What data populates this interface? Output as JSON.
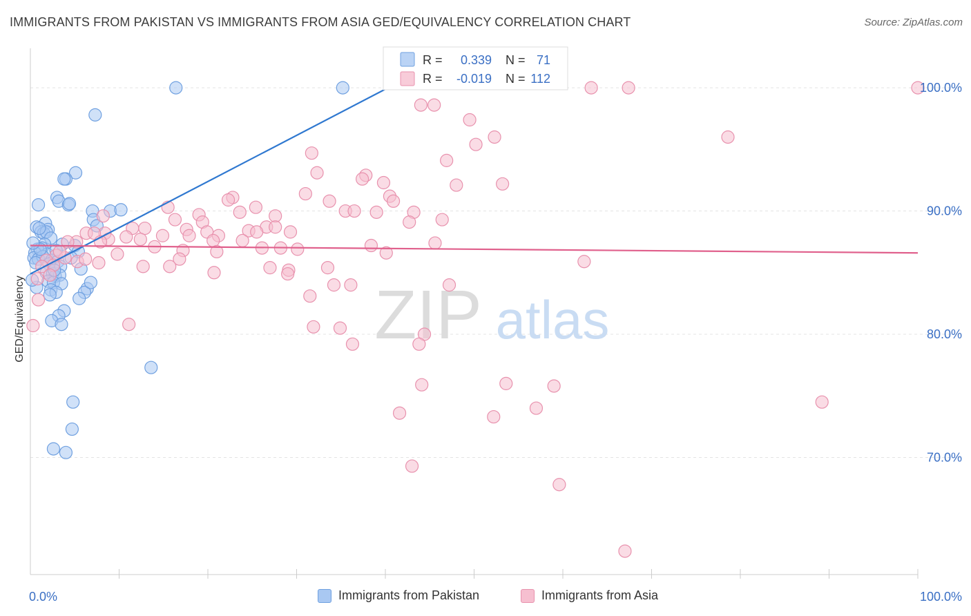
{
  "title": "IMMIGRANTS FROM PAKISTAN VS IMMIGRANTS FROM ASIA GED/EQUIVALENCY CORRELATION CHART",
  "source": "Source: ZipAtlas.com",
  "watermark": {
    "zip": "ZIP",
    "atlas": "atlas"
  },
  "colors": {
    "blue_fill": "#a9c8f2",
    "blue_stroke": "#6fa0e0",
    "blue_line": "#2f78d0",
    "pink_fill": "#f6bfd0",
    "pink_stroke": "#e891ad",
    "pink_line": "#e0608c",
    "value_text": "#3a6fc4",
    "grid": "#e3e3e3"
  },
  "legend_top": {
    "r_label": "R =",
    "n_label": "N =",
    "rows": [
      {
        "r": "0.339",
        "n": "71"
      },
      {
        "r": "-0.019",
        "n": "112"
      }
    ]
  },
  "legend_bottom": [
    "Immigrants from Pakistan",
    "Immigrants from Asia"
  ],
  "chart_data": {
    "type": "scatter",
    "xlabel": "",
    "ylabel": "GED/Equivalency",
    "xlim": [
      0,
      100
    ],
    "ylim": [
      60.5,
      103.2
    ],
    "x_tick_labels": [
      {
        "value": 0,
        "label": "0.0%"
      },
      {
        "value": 100,
        "label": "100.0%"
      }
    ],
    "y_ticks": [
      {
        "value": 100,
        "label": "100.0%"
      },
      {
        "value": 90,
        "label": "90.0%"
      },
      {
        "value": 80,
        "label": "80.0%"
      },
      {
        "value": 70,
        "label": "70.0%"
      }
    ],
    "x_minor_ticks": [
      10,
      20,
      30,
      40,
      50,
      60,
      70,
      80,
      90,
      100
    ],
    "grid": true,
    "legend_position": "top-center",
    "series": [
      {
        "name": "Immigrants from Pakistan",
        "color": "blue",
        "trend": {
          "x": [
            0,
            40.3
          ],
          "y": [
            84.9,
            100.0
          ]
        },
        "points": [
          {
            "x": 16.4,
            "y": 100.0
          },
          {
            "x": 35.2,
            "y": 100.0
          },
          {
            "x": 7.3,
            "y": 97.8
          },
          {
            "x": 5.1,
            "y": 93.1
          },
          {
            "x": 4.0,
            "y": 92.6
          },
          {
            "x": 3.8,
            "y": 92.6
          },
          {
            "x": 3.0,
            "y": 91.1
          },
          {
            "x": 3.2,
            "y": 90.8
          },
          {
            "x": 4.3,
            "y": 90.5
          },
          {
            "x": 4.4,
            "y": 90.6
          },
          {
            "x": 0.9,
            "y": 90.5
          },
          {
            "x": 7.0,
            "y": 90.0
          },
          {
            "x": 9.0,
            "y": 90.0
          },
          {
            "x": 10.2,
            "y": 90.1
          },
          {
            "x": 7.1,
            "y": 89.3
          },
          {
            "x": 1.7,
            "y": 89.0
          },
          {
            "x": 7.5,
            "y": 88.8
          },
          {
            "x": 0.7,
            "y": 88.7
          },
          {
            "x": 2.0,
            "y": 88.5
          },
          {
            "x": 1.2,
            "y": 88.3
          },
          {
            "x": 1.5,
            "y": 88.2
          },
          {
            "x": 1.8,
            "y": 88.3
          },
          {
            "x": 2.3,
            "y": 87.8
          },
          {
            "x": 1.6,
            "y": 87.3
          },
          {
            "x": 3.6,
            "y": 87.3
          },
          {
            "x": 1.3,
            "y": 87.0
          },
          {
            "x": 0.8,
            "y": 86.9
          },
          {
            "x": 5.0,
            "y": 87.2
          },
          {
            "x": 0.5,
            "y": 86.6
          },
          {
            "x": 1.9,
            "y": 86.5
          },
          {
            "x": 2.9,
            "y": 86.8
          },
          {
            "x": 5.4,
            "y": 86.7
          },
          {
            "x": 0.4,
            "y": 86.2
          },
          {
            "x": 0.9,
            "y": 86.1
          },
          {
            "x": 1.4,
            "y": 86.3
          },
          {
            "x": 2.4,
            "y": 86.0
          },
          {
            "x": 3.1,
            "y": 85.9
          },
          {
            "x": 0.6,
            "y": 85.8
          },
          {
            "x": 2.1,
            "y": 85.7
          },
          {
            "x": 3.4,
            "y": 85.5
          },
          {
            "x": 5.7,
            "y": 85.3
          },
          {
            "x": 1.8,
            "y": 85.0
          },
          {
            "x": 2.5,
            "y": 84.9
          },
          {
            "x": 2.8,
            "y": 84.7
          },
          {
            "x": 3.3,
            "y": 84.8
          },
          {
            "x": 2.0,
            "y": 84.3
          },
          {
            "x": 2.6,
            "y": 84.2
          },
          {
            "x": 3.5,
            "y": 84.1
          },
          {
            "x": 0.7,
            "y": 83.8
          },
          {
            "x": 2.3,
            "y": 83.6
          },
          {
            "x": 6.4,
            "y": 83.7
          },
          {
            "x": 2.9,
            "y": 83.4
          },
          {
            "x": 6.1,
            "y": 83.4
          },
          {
            "x": 2.2,
            "y": 83.2
          },
          {
            "x": 5.5,
            "y": 82.9
          },
          {
            "x": 3.8,
            "y": 81.9
          },
          {
            "x": 3.2,
            "y": 81.5
          },
          {
            "x": 2.4,
            "y": 81.1
          },
          {
            "x": 3.5,
            "y": 80.8
          },
          {
            "x": 13.6,
            "y": 77.3
          },
          {
            "x": 4.8,
            "y": 74.5
          },
          {
            "x": 4.7,
            "y": 72.3
          },
          {
            "x": 2.6,
            "y": 70.7
          },
          {
            "x": 4.0,
            "y": 70.4
          },
          {
            "x": 1.1,
            "y": 86.9
          },
          {
            "x": 0.3,
            "y": 87.4
          },
          {
            "x": 1.0,
            "y": 88.6
          },
          {
            "x": 2.7,
            "y": 85.2
          },
          {
            "x": 4.6,
            "y": 86.2
          },
          {
            "x": 6.8,
            "y": 84.2
          },
          {
            "x": 0.2,
            "y": 84.4
          }
        ]
      },
      {
        "name": "Immigrants from Asia",
        "color": "pink",
        "trend": {
          "x": [
            0,
            100
          ],
          "y": [
            87.2,
            86.6
          ]
        },
        "points": [
          {
            "x": 63.2,
            "y": 100.0
          },
          {
            "x": 67.4,
            "y": 100.0
          },
          {
            "x": 100.0,
            "y": 100.0
          },
          {
            "x": 45.5,
            "y": 98.6
          },
          {
            "x": 44.0,
            "y": 98.6
          },
          {
            "x": 49.5,
            "y": 97.4
          },
          {
            "x": 78.6,
            "y": 96.0
          },
          {
            "x": 52.3,
            "y": 96.0
          },
          {
            "x": 50.2,
            "y": 95.4
          },
          {
            "x": 31.7,
            "y": 94.7
          },
          {
            "x": 46.9,
            "y": 94.1
          },
          {
            "x": 32.3,
            "y": 93.1
          },
          {
            "x": 37.8,
            "y": 92.9
          },
          {
            "x": 37.4,
            "y": 92.6
          },
          {
            "x": 39.8,
            "y": 92.3
          },
          {
            "x": 48.0,
            "y": 92.1
          },
          {
            "x": 53.2,
            "y": 92.2
          },
          {
            "x": 31.0,
            "y": 91.4
          },
          {
            "x": 22.8,
            "y": 91.1
          },
          {
            "x": 22.3,
            "y": 90.9
          },
          {
            "x": 40.5,
            "y": 91.2
          },
          {
            "x": 40.9,
            "y": 90.8
          },
          {
            "x": 33.7,
            "y": 90.8
          },
          {
            "x": 15.5,
            "y": 90.3
          },
          {
            "x": 25.4,
            "y": 90.3
          },
          {
            "x": 35.5,
            "y": 90.0
          },
          {
            "x": 36.5,
            "y": 90.0
          },
          {
            "x": 39.0,
            "y": 89.9
          },
          {
            "x": 43.2,
            "y": 89.9
          },
          {
            "x": 23.6,
            "y": 89.9
          },
          {
            "x": 19.0,
            "y": 89.7
          },
          {
            "x": 27.6,
            "y": 89.6
          },
          {
            "x": 8.2,
            "y": 89.6
          },
          {
            "x": 16.3,
            "y": 89.3
          },
          {
            "x": 46.4,
            "y": 89.3
          },
          {
            "x": 42.7,
            "y": 89.1
          },
          {
            "x": 19.4,
            "y": 89.1
          },
          {
            "x": 26.6,
            "y": 88.7
          },
          {
            "x": 27.6,
            "y": 88.7
          },
          {
            "x": 11.5,
            "y": 88.6
          },
          {
            "x": 12.9,
            "y": 88.6
          },
          {
            "x": 17.6,
            "y": 88.5
          },
          {
            "x": 24.6,
            "y": 88.4
          },
          {
            "x": 25.5,
            "y": 88.3
          },
          {
            "x": 19.9,
            "y": 88.3
          },
          {
            "x": 29.3,
            "y": 88.3
          },
          {
            "x": 8.4,
            "y": 88.2
          },
          {
            "x": 6.3,
            "y": 88.2
          },
          {
            "x": 7.2,
            "y": 88.2
          },
          {
            "x": 14.9,
            "y": 88.0
          },
          {
            "x": 17.9,
            "y": 88.0
          },
          {
            "x": 21.2,
            "y": 88.0
          },
          {
            "x": 10.8,
            "y": 87.9
          },
          {
            "x": 12.4,
            "y": 87.7
          },
          {
            "x": 8.8,
            "y": 87.7
          },
          {
            "x": 20.6,
            "y": 87.6
          },
          {
            "x": 23.9,
            "y": 87.6
          },
          {
            "x": 5.2,
            "y": 87.5
          },
          {
            "x": 7.9,
            "y": 87.5
          },
          {
            "x": 45.6,
            "y": 87.4
          },
          {
            "x": 38.4,
            "y": 87.2
          },
          {
            "x": 14.0,
            "y": 87.1
          },
          {
            "x": 26.1,
            "y": 87.0
          },
          {
            "x": 28.2,
            "y": 87.0
          },
          {
            "x": 30.1,
            "y": 86.9
          },
          {
            "x": 17.2,
            "y": 86.8
          },
          {
            "x": 21.0,
            "y": 86.7
          },
          {
            "x": 40.1,
            "y": 86.6
          },
          {
            "x": 9.8,
            "y": 86.5
          },
          {
            "x": 2.9,
            "y": 86.4
          },
          {
            "x": 3.9,
            "y": 86.2
          },
          {
            "x": 16.8,
            "y": 86.1
          },
          {
            "x": 1.8,
            "y": 86.0
          },
          {
            "x": 5.3,
            "y": 85.9
          },
          {
            "x": 62.4,
            "y": 85.9
          },
          {
            "x": 7.7,
            "y": 85.8
          },
          {
            "x": 2.6,
            "y": 85.6
          },
          {
            "x": 12.7,
            "y": 85.5
          },
          {
            "x": 15.7,
            "y": 85.5
          },
          {
            "x": 27.0,
            "y": 85.4
          },
          {
            "x": 33.5,
            "y": 85.4
          },
          {
            "x": 29.1,
            "y": 85.2
          },
          {
            "x": 20.7,
            "y": 85.0
          },
          {
            "x": 29.0,
            "y": 84.9
          },
          {
            "x": 0.8,
            "y": 84.5
          },
          {
            "x": 34.2,
            "y": 84.0
          },
          {
            "x": 36.1,
            "y": 84.0
          },
          {
            "x": 47.2,
            "y": 84.0
          },
          {
            "x": 31.5,
            "y": 83.1
          },
          {
            "x": 0.9,
            "y": 82.8
          },
          {
            "x": 11.1,
            "y": 80.8
          },
          {
            "x": 31.9,
            "y": 80.6
          },
          {
            "x": 34.9,
            "y": 80.5
          },
          {
            "x": 44.4,
            "y": 80.0
          },
          {
            "x": 43.8,
            "y": 79.2
          },
          {
            "x": 36.3,
            "y": 79.2
          },
          {
            "x": 53.6,
            "y": 76.0
          },
          {
            "x": 59.0,
            "y": 75.8
          },
          {
            "x": 44.1,
            "y": 75.9
          },
          {
            "x": 89.2,
            "y": 74.5
          },
          {
            "x": 57.0,
            "y": 74.0
          },
          {
            "x": 41.6,
            "y": 73.6
          },
          {
            "x": 52.2,
            "y": 73.3
          },
          {
            "x": 43.0,
            "y": 69.3
          },
          {
            "x": 59.6,
            "y": 67.8
          },
          {
            "x": 67.0,
            "y": 62.4
          },
          {
            "x": 0.3,
            "y": 80.7
          },
          {
            "x": 4.2,
            "y": 87.5
          },
          {
            "x": 3.3,
            "y": 86.7
          },
          {
            "x": 6.2,
            "y": 86.1
          },
          {
            "x": 1.3,
            "y": 85.5
          },
          {
            "x": 2.2,
            "y": 84.8
          }
        ]
      }
    ]
  }
}
